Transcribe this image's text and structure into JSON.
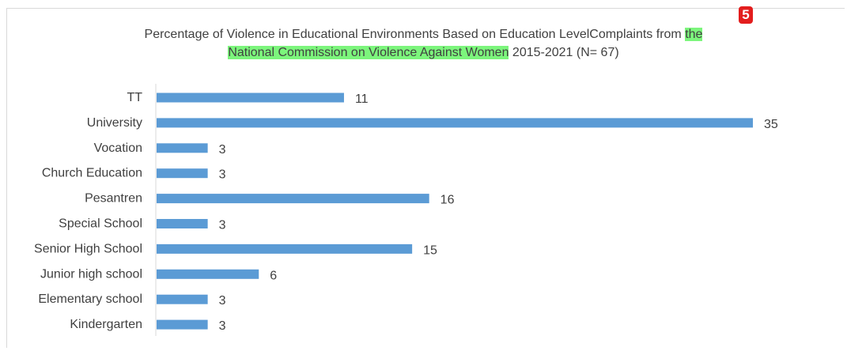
{
  "title": {
    "part1": "Percentage of Violence in Educational Environments Based on Education LevelComplaints from ",
    "highlight1": "the",
    "highlight2": "National Commission on Violence Against Women",
    "part2": " 2015-2021 (N= 67)"
  },
  "badge": "5",
  "colors": {
    "bar": "#5b9bd5",
    "highlight": "#7cf57c",
    "badge": "#e31d1d"
  },
  "chart_data": {
    "type": "bar",
    "orientation": "horizontal",
    "title": "Percentage of Violence in Educational Environments Based on Education LevelComplaints from the National Commission on Violence Against Women 2015-2021 (N= 67)",
    "categories": [
      "TT",
      "University",
      "Vocation",
      "Church Education",
      "Pesantren",
      "Special School",
      "Senior High School",
      "Junior high school",
      "Elementary school",
      "Kindergarten"
    ],
    "values": [
      11,
      35,
      3,
      3,
      16,
      3,
      15,
      6,
      3,
      3
    ],
    "xlim": [
      0,
      35
    ],
    "grid": false,
    "legend": "none",
    "data_labels": true
  }
}
